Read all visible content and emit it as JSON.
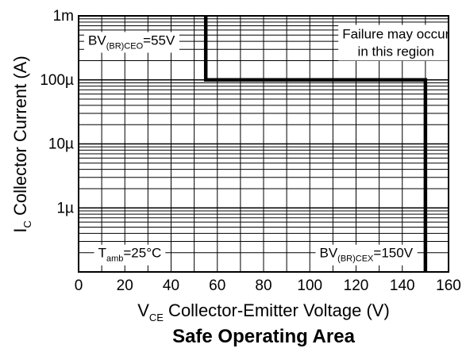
{
  "chart_data": {
    "type": "line",
    "title": "Safe Operating Area",
    "xlabel": {
      "main": "V",
      "sub": "CE",
      "rest": " Collector-Emitter Voltage (V)"
    },
    "ylabel": {
      "main": "I",
      "sub": "C",
      "rest": " Collector Current (A)"
    },
    "x_scale": "linear",
    "y_scale": "log",
    "xlim": [
      0,
      160
    ],
    "ylim": [
      1e-07,
      0.001
    ],
    "grid": true,
    "x_ticks": [
      0,
      10,
      20,
      30,
      40,
      50,
      60,
      70,
      80,
      90,
      100,
      110,
      120,
      130,
      140,
      150,
      160
    ],
    "x_tick_labels": [
      "0",
      "20",
      "40",
      "60",
      "80",
      "100",
      "120",
      "140",
      "160"
    ],
    "x_tick_label_values": [
      0,
      20,
      40,
      60,
      80,
      100,
      120,
      140,
      160
    ],
    "y_tick_labels": [
      "1m",
      "100µ",
      "10µ",
      "1µ"
    ],
    "y_tick_label_values": [
      0.001,
      0.0001,
      1e-05,
      1e-06
    ],
    "series": [
      {
        "x": [
          55,
          55,
          150,
          150
        ],
        "y": [
          0.001,
          0.0001,
          0.0001,
          1e-07
        ],
        "color": "#000000"
      }
    ],
    "annotations": [
      {
        "id": "bv-ceo",
        "main": "BV",
        "sub": "(BR)CEO",
        "rest": "=55V",
        "x": 0,
        "y": 0.00042
      },
      {
        "id": "failure",
        "lines": [
          "Failure may occur",
          "in this region"
        ],
        "x": 140,
        "y": 0.00042
      },
      {
        "id": "tamb",
        "main": "T",
        "sub": "amb",
        "rest": "=25°C",
        "x": 5,
        "y": 2e-07
      },
      {
        "id": "bv-cex",
        "main": "BV",
        "sub": "(BR)CEX",
        "rest": "=150V",
        "x": 148,
        "y": 2e-07
      }
    ]
  }
}
